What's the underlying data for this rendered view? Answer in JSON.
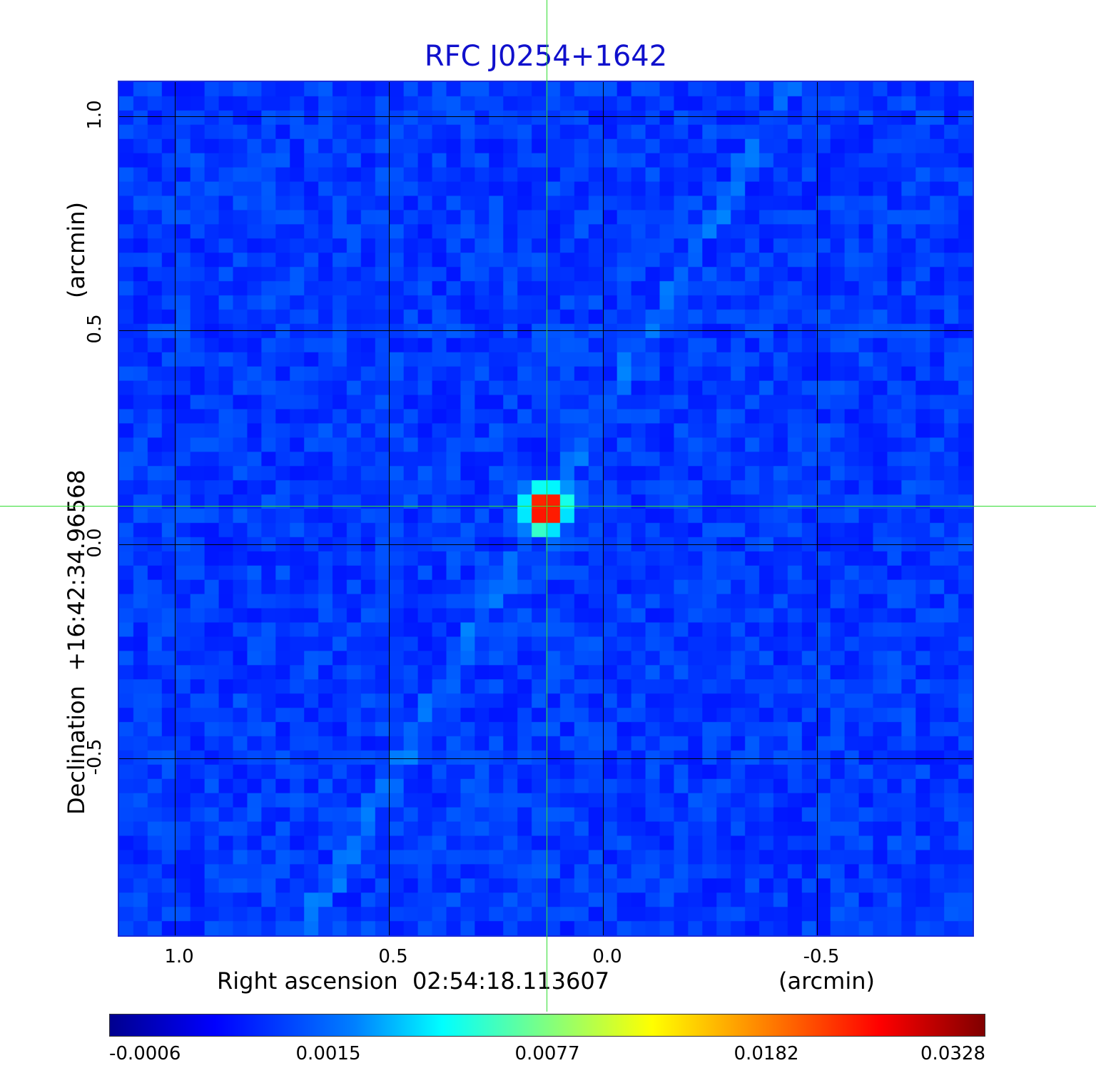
{
  "chart_data": {
    "type": "heatmap",
    "title": "RFC J0254+1642",
    "xlabel": "Right ascension  02:54:18.113607",
    "xunit": "(arcmin)",
    "ylabel": "Declination  +16:42:34.96568",
    "yunit": "(arcmin)",
    "xlim": [
      1.13,
      -0.87
    ],
    "ylim": [
      -0.92,
      1.08
    ],
    "x_ticks": [
      {
        "value": 1.0,
        "label": "1.0"
      },
      {
        "value": 0.5,
        "label": "0.5"
      },
      {
        "value": 0.0,
        "label": "0.0"
      },
      {
        "value": -0.5,
        "label": "-0.5"
      }
    ],
    "y_ticks": [
      {
        "value": 1.0,
        "label": "1.0"
      },
      {
        "value": 0.5,
        "label": "0.5"
      },
      {
        "value": 0.0,
        "label": "0.0"
      },
      {
        "value": -0.5,
        "label": "-0.5"
      }
    ],
    "grid": true,
    "colormap": "jet",
    "colorbar": {
      "placement": "bottom",
      "labels": [
        "-0.0006",
        "0.0015",
        "0.0077",
        "0.0182",
        "0.0328"
      ]
    },
    "peak": {
      "x": 0.13,
      "y": 0.08,
      "value": 0.0328
    },
    "crosshair": {
      "x": 0.13,
      "y": 0.08,
      "color": "#33dd33"
    },
    "background_level": 0.0,
    "colors": {
      "title": "#1010cc",
      "frame": "#1a2bd8",
      "crosshair": "#33dd33"
    }
  }
}
